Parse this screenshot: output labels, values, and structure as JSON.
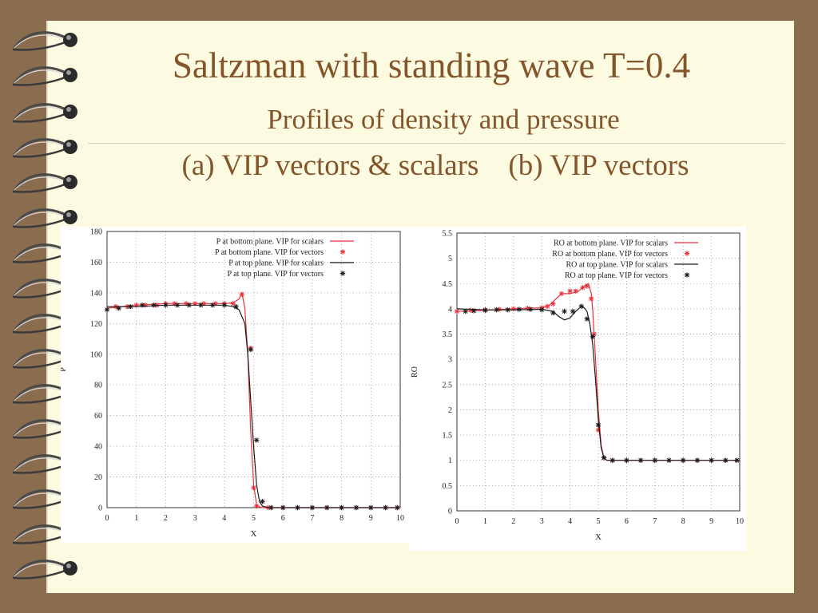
{
  "slide": {
    "title": "Saltzman with standing wave T=0.4",
    "subtitle": "Profiles of density and pressure",
    "captions": "(a) VIP vectors & scalars    (b) VIP vectors"
  },
  "colors": {
    "background": "#8a6d4e",
    "paper": "#fcfbe2",
    "heading": "#84552a",
    "red_series": "#e8323c",
    "black_series": "#1a1a1a"
  },
  "chart_data": [
    {
      "type": "line",
      "xlabel": "X",
      "ylabel": "P",
      "xlim": [
        0,
        10
      ],
      "ylim": [
        0,
        180
      ],
      "xticks": [
        0,
        1,
        2,
        3,
        4,
        5,
        6,
        7,
        8,
        9,
        10
      ],
      "yticks": [
        0,
        20,
        40,
        60,
        80,
        100,
        120,
        140,
        160,
        180
      ],
      "grid": true,
      "legend_position": "top-right",
      "series": [
        {
          "name": "P at bottom plane.  VIP for scalars",
          "style": "line",
          "color": "#e8323c",
          "x": [
            0,
            0.5,
            1,
            2,
            3,
            4,
            4.3,
            4.5,
            4.6,
            4.7,
            4.8,
            4.9,
            5.0,
            5.1,
            5.2,
            5.3,
            6,
            7,
            8,
            9,
            10
          ],
          "y": [
            130,
            131,
            132,
            133,
            133,
            133,
            133.5,
            136,
            140,
            130,
            100,
            50,
            15,
            2,
            0.5,
            0,
            0,
            0,
            0,
            0,
            0
          ]
        },
        {
          "name": "P at bottom plane.  VIP for vectors",
          "style": "marker",
          "marker": "*",
          "color": "#e8323c",
          "x": [
            0.3,
            0.7,
            1,
            1.3,
            1.7,
            2,
            2.3,
            2.7,
            3,
            3.3,
            3.7,
            4,
            4.3,
            4.6,
            4.9,
            5.0,
            5.1,
            5.5,
            6,
            6.5,
            7,
            7.5,
            8,
            8.5,
            9,
            9.5,
            9.9
          ],
          "y": [
            131,
            131,
            132,
            132,
            132,
            133,
            133,
            133,
            133,
            133,
            133,
            133,
            133,
            139,
            104,
            13,
            1,
            0,
            0,
            0,
            0,
            0,
            0,
            0,
            0,
            0,
            0
          ]
        },
        {
          "name": "P at top plane.  VIP for scalars",
          "style": "line",
          "color": "#1a1a1a",
          "x": [
            0,
            0.5,
            1,
            2,
            3,
            4,
            4.3,
            4.5,
            4.7,
            4.8,
            4.9,
            5.0,
            5.1,
            5.2,
            5.3,
            5.5,
            6,
            7,
            8,
            9,
            10
          ],
          "y": [
            131,
            131,
            131,
            132,
            132,
            132,
            131,
            129,
            120,
            100,
            70,
            40,
            15,
            4,
            1,
            0,
            0,
            0,
            0,
            0,
            0
          ]
        },
        {
          "name": "P at top plane.  VIP for vectors",
          "style": "marker",
          "marker": "*",
          "color": "#1a1a1a",
          "x": [
            0,
            0.4,
            0.8,
            1.2,
            1.6,
            2,
            2.4,
            2.8,
            3.2,
            3.6,
            4,
            4.4,
            4.9,
            5.1,
            5.3,
            5.6,
            6,
            6.5,
            7,
            7.5,
            8,
            8.5,
            9,
            9.5,
            9.9
          ],
          "y": [
            129,
            130,
            131,
            132,
            132,
            132,
            132,
            132,
            132,
            132,
            132,
            131,
            103,
            44,
            4,
            0,
            0,
            0,
            0,
            0,
            0,
            0,
            0,
            0,
            0
          ]
        }
      ]
    },
    {
      "type": "line",
      "xlabel": "X",
      "ylabel": "RO",
      "xlim": [
        0,
        10
      ],
      "ylim": [
        0,
        5.5
      ],
      "xticks": [
        0,
        1,
        2,
        3,
        4,
        5,
        6,
        7,
        8,
        9,
        10
      ],
      "yticks": [
        0,
        0.5,
        1,
        1.5,
        2,
        2.5,
        3,
        3.5,
        4,
        4.5,
        5,
        5.5
      ],
      "grid": true,
      "legend_position": "top-right",
      "series": [
        {
          "name": "RO at bottom plane.  VIP for scalars",
          "style": "line",
          "color": "#e8323c",
          "x": [
            0,
            1,
            2,
            3,
            3.3,
            3.5,
            3.7,
            4,
            4.3,
            4.5,
            4.65,
            4.75,
            4.8,
            4.9,
            5.0,
            5.1,
            5.2,
            5.3,
            6,
            7,
            8,
            9,
            10
          ],
          "y": [
            3.95,
            3.97,
            4.0,
            4.02,
            4.08,
            4.2,
            4.3,
            4.3,
            4.35,
            4.45,
            4.5,
            4.3,
            4.0,
            3.0,
            2.0,
            1.3,
            1.05,
            1.0,
            1.0,
            1.0,
            1.0,
            1.0,
            1.0
          ]
        },
        {
          "name": "RO at bottom plane.  VIP for vectors",
          "style": "marker",
          "marker": "*",
          "color": "#e8323c",
          "x": [
            0,
            0.5,
            1,
            1.5,
            2,
            2.5,
            3,
            3.2,
            3.4,
            3.7,
            4,
            4.2,
            4.45,
            4.6,
            4.75,
            4.85,
            5.0,
            5.2,
            5.5,
            6,
            6.5,
            7,
            7.5,
            8,
            8.5,
            9,
            9.5,
            9.9
          ],
          "y": [
            3.95,
            3.97,
            3.98,
            3.99,
            4.0,
            4.01,
            4.02,
            4.05,
            4.1,
            4.3,
            4.35,
            4.35,
            4.42,
            4.45,
            4.2,
            3.5,
            1.6,
            1.05,
            1.0,
            1.0,
            1.0,
            1.0,
            1.0,
            1.0,
            1.0,
            1.0,
            1.0,
            1.0
          ]
        },
        {
          "name": "RO at top plane.  VIP for scalars",
          "style": "line",
          "color": "#1a1a1a",
          "x": [
            0,
            1,
            2,
            3,
            3.4,
            3.6,
            3.8,
            4,
            4.2,
            4.4,
            4.5,
            4.6,
            4.7,
            4.8,
            4.9,
            5.0,
            5.1,
            5.2,
            5.3,
            5.5,
            6,
            7,
            8,
            9,
            10
          ],
          "y": [
            4.0,
            3.98,
            3.98,
            3.99,
            3.95,
            3.85,
            3.78,
            3.82,
            3.95,
            4.05,
            4.02,
            3.95,
            3.7,
            3.3,
            2.6,
            1.8,
            1.25,
            1.05,
            1.0,
            1.0,
            1.0,
            1.0,
            1.0,
            1.0,
            1.0
          ]
        },
        {
          "name": "RO at top plane.  VIP for vectors",
          "style": "marker",
          "marker": "*",
          "color": "#1a1a1a",
          "x": [
            0.3,
            0.6,
            1,
            1.4,
            1.8,
            2.2,
            2.6,
            3,
            3.4,
            3.8,
            4.1,
            4.4,
            4.6,
            4.8,
            5.0,
            5.2,
            5.5,
            6,
            6.5,
            7,
            7.5,
            8,
            8.5,
            9,
            9.5,
            9.9
          ],
          "y": [
            3.95,
            3.96,
            3.97,
            3.98,
            3.98,
            3.99,
            3.99,
            3.98,
            3.92,
            3.95,
            3.95,
            4.05,
            3.8,
            3.45,
            1.7,
            1.05,
            1.0,
            1.0,
            1.0,
            1.0,
            1.0,
            1.0,
            1.0,
            1.0,
            1.0,
            1.0
          ]
        }
      ]
    }
  ]
}
